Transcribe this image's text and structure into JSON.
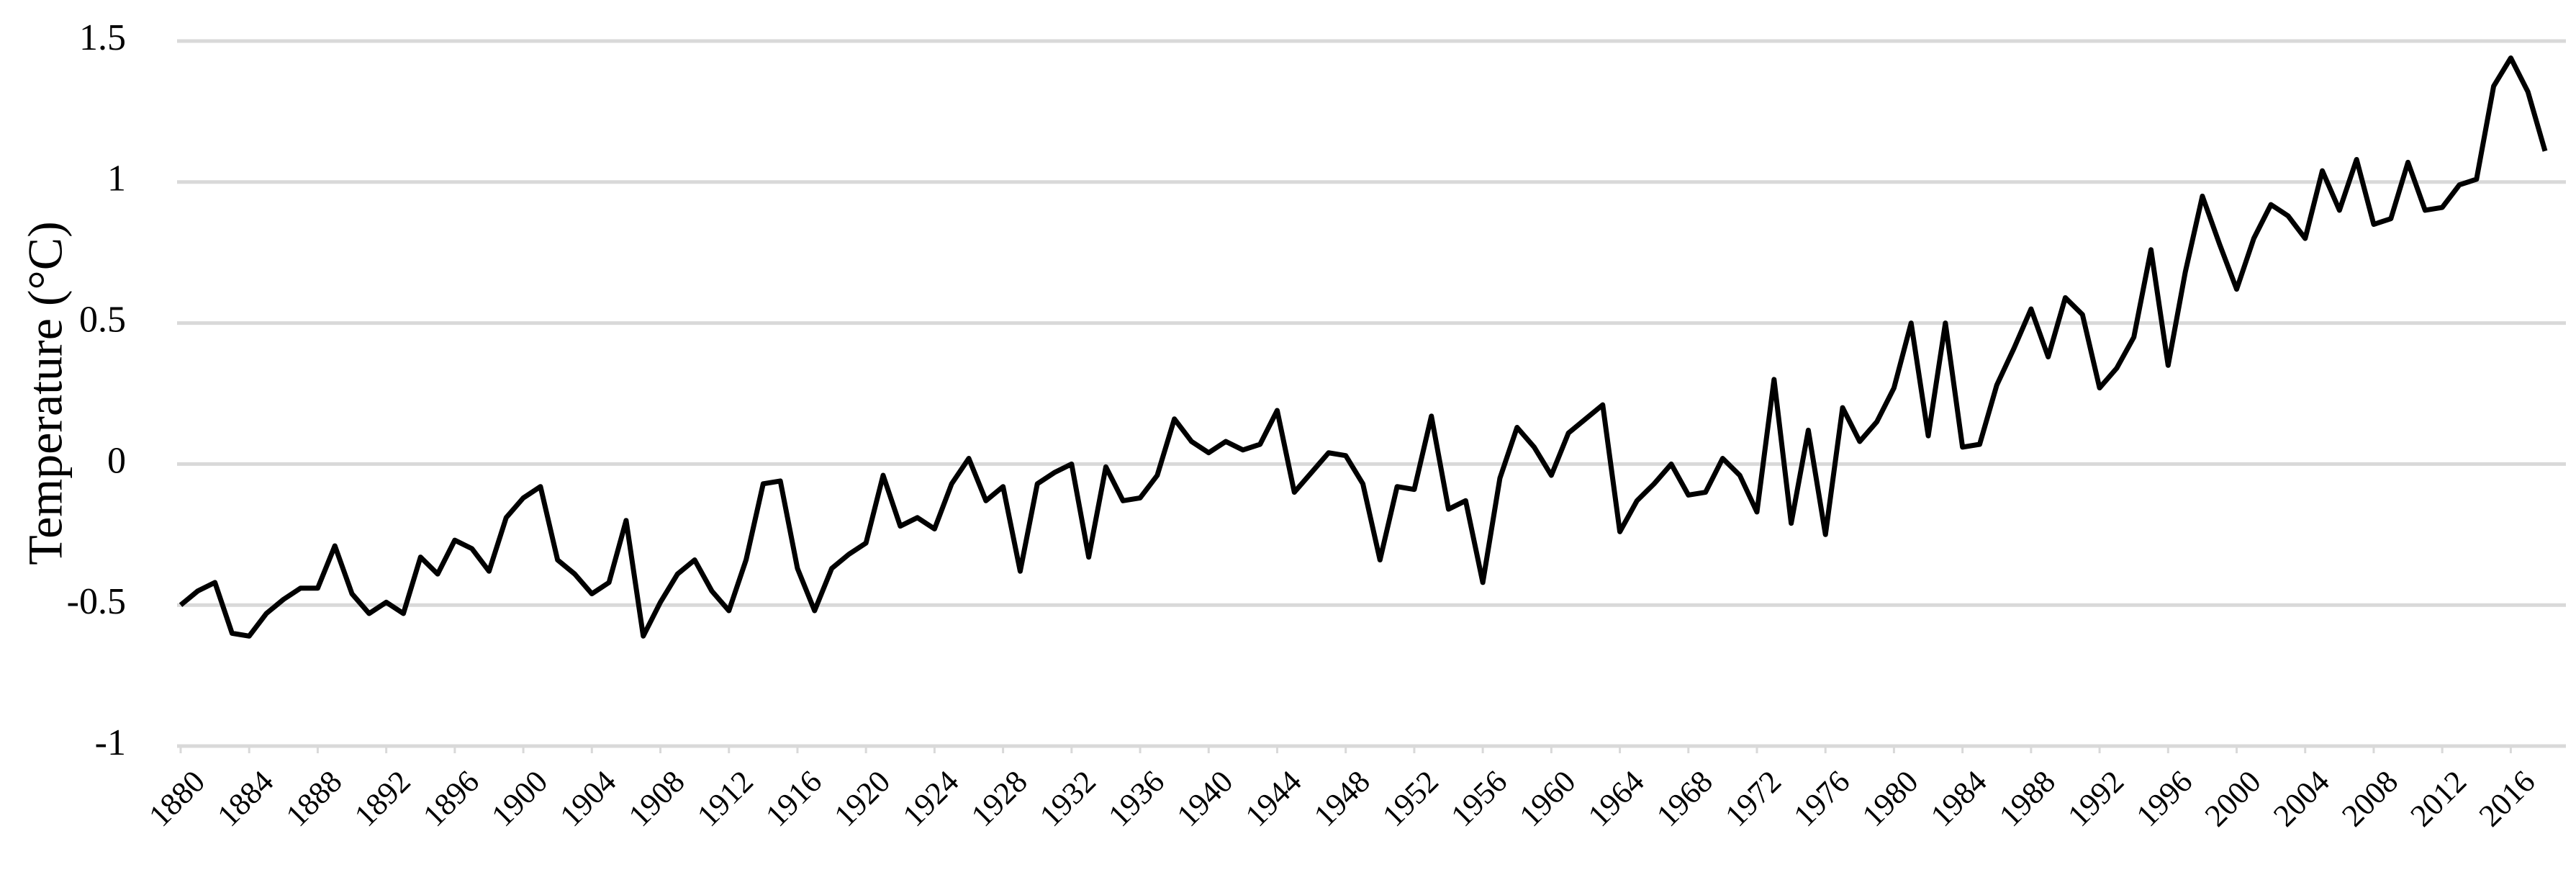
{
  "chart_data": {
    "type": "line",
    "y_label": "Temperature (°C)",
    "x": [
      1880,
      1881,
      1882,
      1883,
      1884,
      1885,
      1886,
      1887,
      1888,
      1889,
      1890,
      1891,
      1892,
      1893,
      1894,
      1895,
      1896,
      1897,
      1898,
      1899,
      1900,
      1901,
      1902,
      1903,
      1904,
      1905,
      1906,
      1907,
      1908,
      1909,
      1910,
      1911,
      1912,
      1913,
      1914,
      1915,
      1916,
      1917,
      1918,
      1919,
      1920,
      1921,
      1922,
      1923,
      1924,
      1925,
      1926,
      1927,
      1928,
      1929,
      1930,
      1931,
      1932,
      1933,
      1934,
      1935,
      1936,
      1937,
      1938,
      1939,
      1940,
      1941,
      1942,
      1943,
      1944,
      1945,
      1946,
      1947,
      1948,
      1949,
      1950,
      1951,
      1952,
      1953,
      1954,
      1955,
      1956,
      1957,
      1958,
      1959,
      1960,
      1961,
      1962,
      1963,
      1964,
      1965,
      1966,
      1967,
      1968,
      1969,
      1970,
      1971,
      1972,
      1973,
      1974,
      1975,
      1976,
      1977,
      1978,
      1979,
      1980,
      1981,
      1982,
      1983,
      1984,
      1985,
      1986,
      1987,
      1988,
      1989,
      1990,
      1991,
      1992,
      1993,
      1994,
      1995,
      1996,
      1997,
      1998,
      1999,
      2000,
      2001,
      2002,
      2003,
      2004,
      2005,
      2006,
      2007,
      2008,
      2009,
      2010,
      2011,
      2012,
      2013,
      2014,
      2015,
      2016,
      2017,
      2018
    ],
    "values": [
      -0.5,
      -0.45,
      -0.42,
      -0.6,
      -0.61,
      -0.53,
      -0.48,
      -0.44,
      -0.44,
      -0.29,
      -0.46,
      -0.53,
      -0.49,
      -0.53,
      -0.33,
      -0.39,
      -0.27,
      -0.3,
      -0.38,
      -0.19,
      -0.12,
      -0.08,
      -0.34,
      -0.39,
      -0.46,
      -0.42,
      -0.2,
      -0.61,
      -0.49,
      -0.39,
      -0.34,
      -0.45,
      -0.52,
      -0.34,
      -0.07,
      -0.06,
      -0.37,
      -0.52,
      -0.37,
      -0.32,
      -0.28,
      -0.04,
      -0.22,
      -0.19,
      -0.23,
      -0.07,
      0.02,
      -0.13,
      -0.08,
      -0.38,
      -0.07,
      -0.03,
      0.0,
      -0.33,
      -0.01,
      -0.13,
      -0.12,
      -0.04,
      0.16,
      0.08,
      0.04,
      0.08,
      0.05,
      0.07,
      0.19,
      -0.1,
      -0.03,
      0.04,
      0.03,
      -0.07,
      -0.34,
      -0.08,
      -0.09,
      0.17,
      -0.16,
      -0.13,
      -0.42,
      -0.05,
      0.13,
      0.06,
      -0.04,
      0.11,
      0.16,
      0.21,
      -0.24,
      -0.13,
      -0.07,
      0.0,
      -0.11,
      -0.1,
      0.02,
      -0.04,
      -0.17,
      0.3,
      -0.21,
      0.12,
      -0.25,
      0.2,
      0.08,
      0.15,
      0.27,
      0.5,
      0.1,
      0.5,
      0.06,
      0.07,
      0.28,
      0.41,
      0.55,
      0.38,
      0.59,
      0.53,
      0.27,
      0.34,
      0.45,
      0.76,
      0.35,
      0.68,
      0.95,
      0.78,
      0.62,
      0.8,
      0.92,
      0.88,
      0.8,
      1.04,
      0.9,
      1.08,
      0.85,
      0.87,
      1.07,
      0.9,
      0.91,
      0.99,
      1.01,
      1.34,
      1.44,
      1.32,
      1.11
    ],
    "color": "#000000",
    "xlim": [
      1880,
      2018
    ],
    "xticks": [
      1880,
      1884,
      1888,
      1892,
      1896,
      1900,
      1904,
      1908,
      1912,
      1916,
      1920,
      1924,
      1928,
      1932,
      1936,
      1940,
      1944,
      1948,
      1952,
      1956,
      1960,
      1964,
      1968,
      1972,
      1976,
      1980,
      1984,
      1988,
      1992,
      1996,
      2000,
      2004,
      2008,
      2012,
      2016
    ],
    "ylim": [
      -1,
      1.5
    ],
    "yticks": [
      1.5,
      1,
      0.5,
      0,
      -0.5,
      -1
    ],
    "grid": true
  }
}
